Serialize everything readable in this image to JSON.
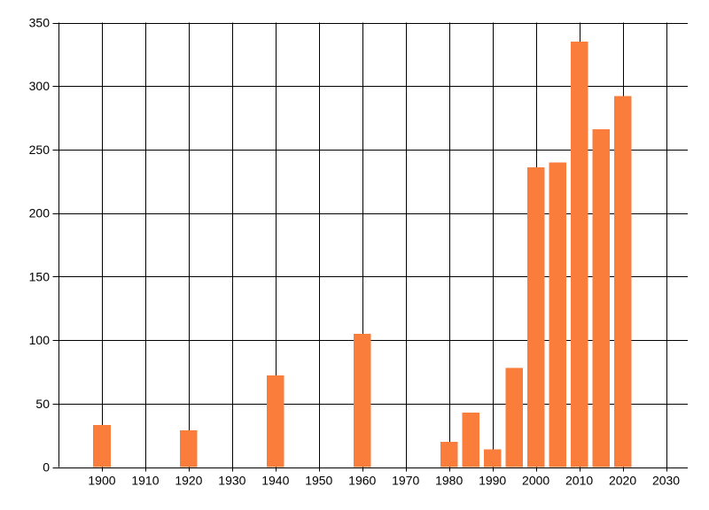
{
  "chart_data": {
    "type": "bar",
    "title": "",
    "xlabel": "",
    "ylabel": "",
    "x": [
      1900,
      1920,
      1940,
      1960,
      1980,
      1985,
      1990,
      1995,
      2000,
      2005,
      2010,
      2015,
      2020
    ],
    "values": [
      33,
      29,
      72,
      105,
      20,
      43,
      14,
      78,
      236,
      240,
      335,
      266,
      292
    ],
    "bar_width_years": 4,
    "bar_color": "#FB7D3B",
    "xlim": [
      1890,
      2035
    ],
    "ylim": [
      0,
      350
    ],
    "x_ticks": [
      1900,
      1910,
      1920,
      1930,
      1940,
      1950,
      1960,
      1970,
      1980,
      1990,
      2000,
      2010,
      2020,
      2030
    ],
    "y_ticks": [
      0,
      50,
      100,
      150,
      200,
      250,
      300,
      350
    ],
    "grid": true,
    "grid_color": "#000000",
    "axis_color": "#000000",
    "background_color": "#FFFFFF",
    "legend": "none"
  }
}
